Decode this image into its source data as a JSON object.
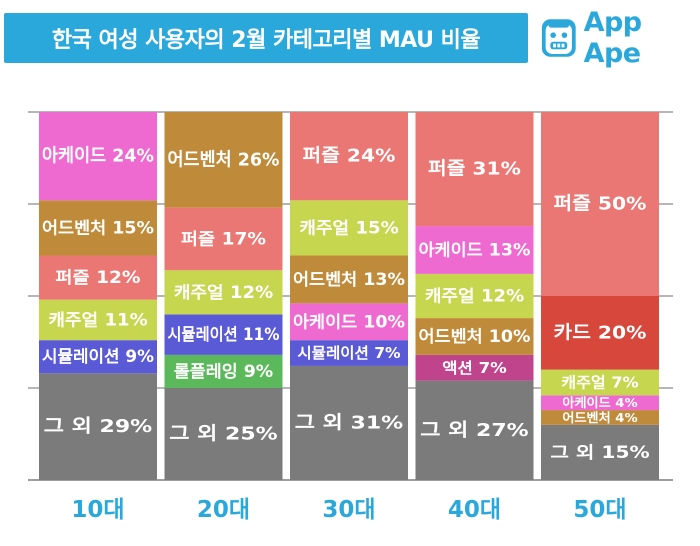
{
  "header": {
    "title": "한국 여성 사용자의 2월 카테고리별 MAU 비율",
    "brand": "App Ape",
    "logo_icon": "app-ape-monkey-icon"
  },
  "colors": {
    "brand": "#2aa8dc",
    "gridline": "#9e9e9e"
  },
  "chart_data": {
    "type": "bar",
    "stacked": true,
    "title": "한국 여성 사용자의 2월 카테고리별 MAU 비율",
    "xlabel": "",
    "ylabel": "",
    "ylim": [
      0,
      100
    ],
    "unit": "%",
    "grid": true,
    "categories": [
      "10대",
      "20대",
      "30대",
      "40대",
      "50대"
    ],
    "bars": [
      {
        "category": "10대",
        "segments": [
          {
            "label": "그 외 29%",
            "value": 29,
            "color": "#7b7b7b"
          },
          {
            "label": "시뮬레이션 9%",
            "value": 9,
            "color": "#5a5ad6"
          },
          {
            "label": "캐주얼 11%",
            "value": 11,
            "color": "#c6d64e"
          },
          {
            "label": "퍼즐 12%",
            "value": 12,
            "color": "#ea7773"
          },
          {
            "label": "어드벤처 15%",
            "value": 15,
            "color": "#c08a3b"
          },
          {
            "label": "아케이드 24%",
            "value": 24,
            "color": "#ee6ad0"
          }
        ]
      },
      {
        "category": "20대",
        "segments": [
          {
            "label": "그 외 25%",
            "value": 25,
            "color": "#7b7b7b"
          },
          {
            "label": "롤플레잉 9%",
            "value": 9,
            "color": "#5bb95b"
          },
          {
            "label": "시뮬레이션 11%",
            "value": 11,
            "color": "#5a5ad6"
          },
          {
            "label": "캐주얼 12%",
            "value": 12,
            "color": "#c6d64e"
          },
          {
            "label": "퍼즐 17%",
            "value": 17,
            "color": "#ea7773"
          },
          {
            "label": "어드벤처 26%",
            "value": 26,
            "color": "#c08a3b"
          }
        ]
      },
      {
        "category": "30대",
        "segments": [
          {
            "label": "그 외 31%",
            "value": 31,
            "color": "#7b7b7b"
          },
          {
            "label": "시뮬레이션 7%",
            "value": 7,
            "color": "#5a5ad6"
          },
          {
            "label": "아케이드 10%",
            "value": 10,
            "color": "#ee6ad0"
          },
          {
            "label": "어드벤처 13%",
            "value": 13,
            "color": "#c08a3b"
          },
          {
            "label": "캐주얼 15%",
            "value": 15,
            "color": "#c6d64e"
          },
          {
            "label": "퍼즐 24%",
            "value": 24,
            "color": "#ea7773"
          }
        ]
      },
      {
        "category": "40대",
        "segments": [
          {
            "label": "그 외 27%",
            "value": 27,
            "color": "#7b7b7b"
          },
          {
            "label": "액션 7%",
            "value": 7,
            "color": "#c0448c"
          },
          {
            "label": "어드벤처 10%",
            "value": 10,
            "color": "#c08a3b"
          },
          {
            "label": "캐주얼 12%",
            "value": 12,
            "color": "#c6d64e"
          },
          {
            "label": "아케이드 13%",
            "value": 13,
            "color": "#ee6ad0"
          },
          {
            "label": "퍼즐 31%",
            "value": 31,
            "color": "#ea7773"
          }
        ]
      },
      {
        "category": "50대",
        "segments": [
          {
            "label": "그 외 15%",
            "value": 15,
            "color": "#7b7b7b"
          },
          {
            "label": "어드벤처 4%",
            "value": 4,
            "color": "#c08a3b"
          },
          {
            "label": "아케이드 4%",
            "value": 4,
            "color": "#ee6ad0"
          },
          {
            "label": "캐주얼 7%",
            "value": 7,
            "color": "#c6d64e"
          },
          {
            "label": "카드 20%",
            "value": 20,
            "color": "#d7473c"
          },
          {
            "label": "퍼즐 50%",
            "value": 50,
            "color": "#ea7773"
          }
        ]
      }
    ]
  }
}
